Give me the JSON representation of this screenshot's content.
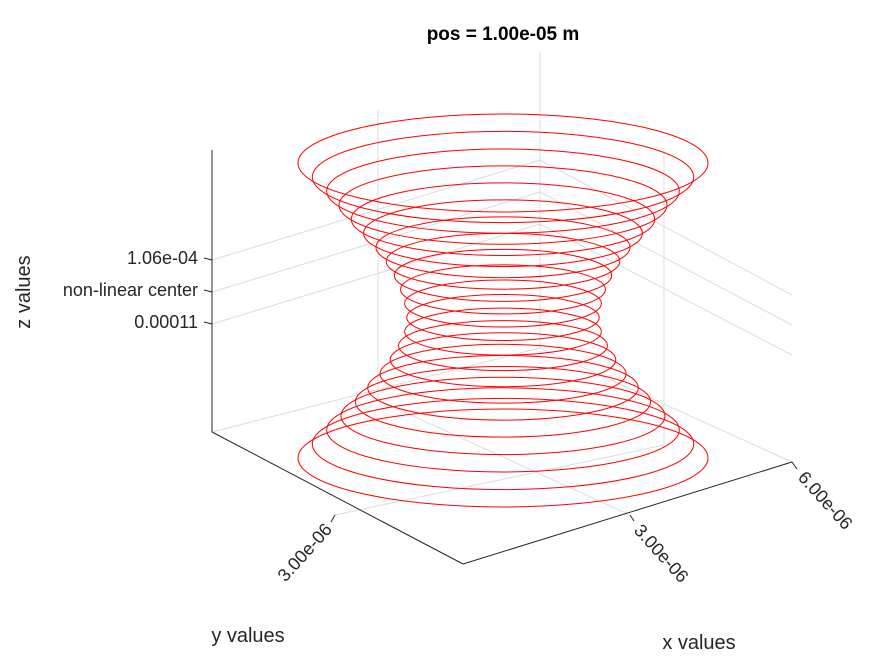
{
  "chart_data": {
    "type": "line",
    "title": "pos = 1.00e-05 m",
    "xlabel": "x values",
    "ylabel": "y values",
    "zlabel": "z values",
    "x_ticks": [
      "3.00e-06",
      "6.00e-06"
    ],
    "y_ticks": [
      "3.00e-06"
    ],
    "z_ticks": [
      "1.06e-04",
      "non-linear center",
      "0.00011"
    ],
    "grid": true,
    "series": [
      {
        "color": "#ff0000",
        "rings": [
          {
            "z": -12,
            "r": 1.0
          },
          {
            "z": -11,
            "r": 0.93
          },
          {
            "z": -10,
            "r": 0.86
          },
          {
            "z": -9,
            "r": 0.79
          },
          {
            "z": -8,
            "r": 0.72
          },
          {
            "z": -7,
            "r": 0.66
          },
          {
            "z": -6,
            "r": 0.6
          },
          {
            "z": -5,
            "r": 0.55
          },
          {
            "z": -4,
            "r": 0.51
          },
          {
            "z": -3,
            "r": 0.48
          },
          {
            "z": -2,
            "r": 0.47
          },
          {
            "z": -1,
            "r": 0.48
          },
          {
            "z": 0,
            "r": 0.5
          },
          {
            "z": 1,
            "r": 0.53
          },
          {
            "z": 2,
            "r": 0.57
          },
          {
            "z": 3,
            "r": 0.62
          },
          {
            "z": 4,
            "r": 0.68
          },
          {
            "z": 5,
            "r": 0.74
          },
          {
            "z": 6,
            "r": 0.8
          },
          {
            "z": 7,
            "r": 0.86
          },
          {
            "z": 8,
            "r": 0.93
          },
          {
            "z": 9,
            "r": 1.0
          }
        ]
      }
    ]
  }
}
